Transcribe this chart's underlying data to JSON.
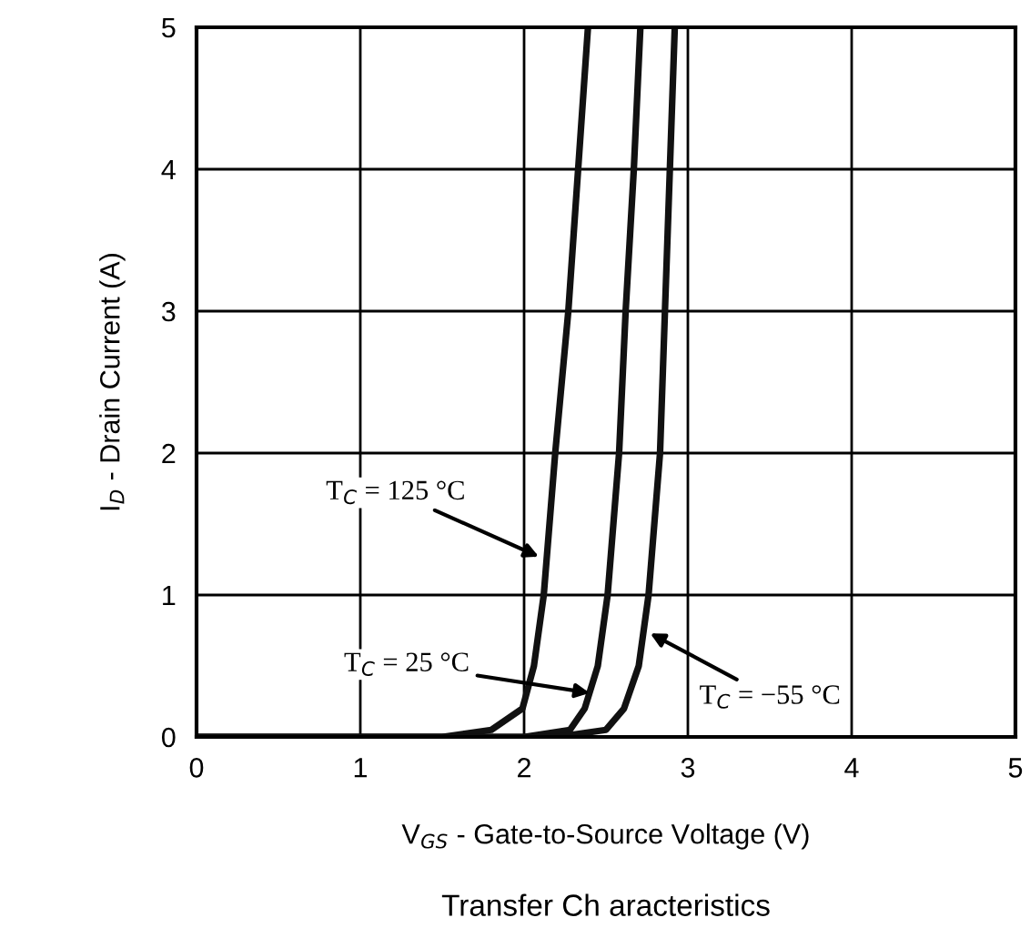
{
  "chart_data": {
    "type": "line",
    "title": "Transfer Ch aracteristics",
    "xlabel": "V$_{GS}$ - Gate-to-Source Voltage (V)",
    "ylabel": "I$_{D}$ - Drain Current (A)",
    "xlim": [
      0,
      5
    ],
    "ylim": [
      0,
      5
    ],
    "xticks": [
      0,
      1,
      2,
      3,
      4,
      5
    ],
    "yticks": [
      0,
      1,
      2,
      3,
      4,
      5
    ],
    "grid": true,
    "legend": false,
    "marker": "none",
    "line_style": "solid",
    "series": [
      {
        "color": "#111111",
        "x": [
          0,
          1.5,
          1.8,
          1.99,
          2.06,
          2.12,
          2.19,
          2.27,
          2.33,
          2.39
        ],
        "values": [
          0,
          0,
          0.05,
          0.2,
          0.5,
          1,
          2,
          3,
          4,
          5
        ]
      },
      {
        "color": "#111111",
        "x": [
          0,
          2.0,
          2.28,
          2.37,
          2.45,
          2.51,
          2.58,
          2.62,
          2.67,
          2.71
        ],
        "values": [
          0,
          0,
          0.05,
          0.2,
          0.5,
          1,
          2,
          3,
          4,
          5
        ]
      },
      {
        "color": "#111111",
        "x": [
          0,
          2.2,
          2.5,
          2.61,
          2.7,
          2.76,
          2.83,
          2.86,
          2.89,
          2.92
        ],
        "values": [
          0,
          0,
          0.05,
          0.2,
          0.5,
          1,
          2,
          3,
          4,
          5
        ]
      }
    ],
    "annotations": [
      {
        "text": "T$_{C}$ = 125 °C",
        "x": 2.09,
        "y": 1.27
      },
      {
        "text": "T$_{C}$ = 25 °C",
        "x": 2.4,
        "y": 0.31
      },
      {
        "text": "T$_{C}$ = −55 °C",
        "x": 2.77,
        "y": 0.73
      }
    ]
  }
}
